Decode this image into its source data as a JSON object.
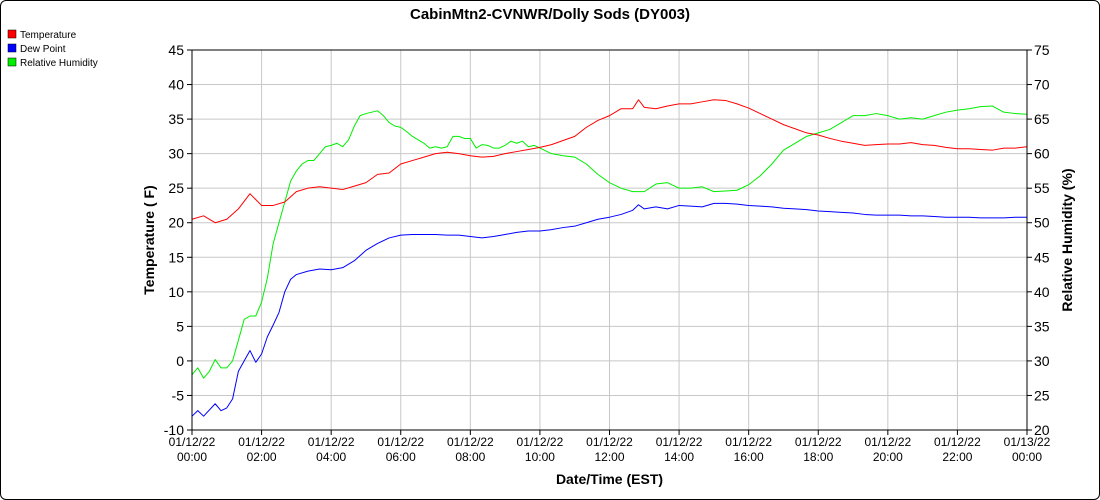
{
  "chart_data": {
    "type": "line",
    "title": "CabinMtn2-CVNWR/Dolly Sods (DY003)",
    "xlabel": "Date/Time (EST)",
    "ylabel_left": "Temperature ( F)",
    "ylabel_right": "Relative Humidity (%)",
    "x_range": [
      "01/12/22 00:00",
      "01/13/22 00:00"
    ],
    "x_ticks": [
      {
        "date": "01/12/22",
        "time": "00:00"
      },
      {
        "date": "01/12/22",
        "time": "02:00"
      },
      {
        "date": "01/12/22",
        "time": "04:00"
      },
      {
        "date": "01/12/22",
        "time": "06:00"
      },
      {
        "date": "01/12/22",
        "time": "08:00"
      },
      {
        "date": "01/12/22",
        "time": "10:00"
      },
      {
        "date": "01/12/22",
        "time": "12:00"
      },
      {
        "date": "01/12/22",
        "time": "14:00"
      },
      {
        "date": "01/12/22",
        "time": "16:00"
      },
      {
        "date": "01/12/22",
        "time": "18:00"
      },
      {
        "date": "01/12/22",
        "time": "20:00"
      },
      {
        "date": "01/12/22",
        "time": "22:00"
      },
      {
        "date": "01/13/22",
        "time": "00:00"
      }
    ],
    "ylim_left": [
      -10,
      45
    ],
    "yticks_left": [
      -10,
      -5,
      0,
      5,
      10,
      15,
      20,
      25,
      30,
      35,
      40,
      45
    ],
    "ylim_right": [
      20,
      75
    ],
    "yticks_right": [
      20,
      25,
      30,
      35,
      40,
      45,
      50,
      55,
      60,
      65,
      70,
      75
    ],
    "grid": true,
    "legend_position": "top-left",
    "series": [
      {
        "name": "Temperature",
        "color": "#ff0000",
        "axis": "left",
        "x": [
          "01/12/22 00:00",
          "01/12/22 00:20",
          "01/12/22 00:40",
          "01/12/22 01:00",
          "01/12/22 01:20",
          "01/12/22 01:40",
          "01/12/22 02:00",
          "01/12/22 02:20",
          "01/12/22 02:40",
          "01/12/22 03:00",
          "01/12/22 03:20",
          "01/12/22 03:40",
          "01/12/22 04:00",
          "01/12/22 04:20",
          "01/12/22 04:40",
          "01/12/22 05:00",
          "01/12/22 05:20",
          "01/12/22 05:40",
          "01/12/22 06:00",
          "01/12/22 06:20",
          "01/12/22 06:40",
          "01/12/22 07:00",
          "01/12/22 07:20",
          "01/12/22 07:40",
          "01/12/22 08:00",
          "01/12/22 08:20",
          "01/12/22 08:40",
          "01/12/22 09:00",
          "01/12/22 09:20",
          "01/12/22 09:40",
          "01/12/22 10:00",
          "01/12/22 10:20",
          "01/12/22 10:40",
          "01/12/22 11:00",
          "01/12/22 11:20",
          "01/12/22 11:40",
          "01/12/22 12:00",
          "01/12/22 12:20",
          "01/12/22 12:40",
          "01/12/22 12:50",
          "01/12/22 13:00",
          "01/12/22 13:20",
          "01/12/22 13:40",
          "01/12/22 14:00",
          "01/12/22 14:20",
          "01/12/22 14:40",
          "01/12/22 15:00",
          "01/12/22 15:20",
          "01/12/22 15:40",
          "01/12/22 16:00",
          "01/12/22 16:20",
          "01/12/22 16:40",
          "01/12/22 17:00",
          "01/12/22 17:20",
          "01/12/22 17:40",
          "01/12/22 18:00",
          "01/12/22 18:20",
          "01/12/22 18:40",
          "01/12/22 19:00",
          "01/12/22 19:20",
          "01/12/22 19:40",
          "01/12/22 20:00",
          "01/12/22 20:20",
          "01/12/22 20:40",
          "01/12/22 21:00",
          "01/12/22 21:20",
          "01/12/22 21:40",
          "01/12/22 22:00",
          "01/12/22 22:20",
          "01/12/22 22:40",
          "01/12/22 23:00",
          "01/12/22 23:20",
          "01/12/22 23:40",
          "01/13/22 00:00"
        ],
        "y": [
          20.5,
          21.0,
          20.0,
          20.5,
          22.0,
          24.2,
          22.5,
          22.5,
          23.0,
          24.5,
          25.0,
          25.2,
          25.0,
          24.8,
          25.3,
          25.8,
          27.0,
          27.2,
          28.5,
          29.0,
          29.5,
          30.0,
          30.2,
          30.0,
          29.7,
          29.5,
          29.6,
          30.0,
          30.3,
          30.6,
          30.9,
          31.3,
          31.9,
          32.5,
          33.8,
          34.8,
          35.5,
          36.5,
          36.5,
          37.8,
          36.7,
          36.5,
          36.9,
          37.2,
          37.2,
          37.5,
          37.8,
          37.7,
          37.2,
          36.6,
          35.8,
          35.0,
          34.2,
          33.6,
          33.0,
          32.7,
          32.2,
          31.8,
          31.5,
          31.2,
          31.3,
          31.4,
          31.4,
          31.6,
          31.3,
          31.2,
          30.9,
          30.7,
          30.7,
          30.6,
          30.5,
          30.8,
          30.8,
          31.0
        ]
      },
      {
        "name": "Dew Point",
        "color": "#0000ff",
        "axis": "left",
        "x": [
          "01/12/22 00:00",
          "01/12/22 00:10",
          "01/12/22 00:20",
          "01/12/22 00:40",
          "01/12/22 00:50",
          "01/12/22 01:00",
          "01/12/22 01:10",
          "01/12/22 01:20",
          "01/12/22 01:40",
          "01/12/22 01:50",
          "01/12/22 02:00",
          "01/12/22 02:10",
          "01/12/22 02:20",
          "01/12/22 02:30",
          "01/12/22 02:40",
          "01/12/22 02:50",
          "01/12/22 03:00",
          "01/12/22 03:20",
          "01/12/22 03:40",
          "01/12/22 04:00",
          "01/12/22 04:20",
          "01/12/22 04:40",
          "01/12/22 05:00",
          "01/12/22 05:20",
          "01/12/22 05:40",
          "01/12/22 06:00",
          "01/12/22 06:20",
          "01/12/22 06:40",
          "01/12/22 07:00",
          "01/12/22 07:20",
          "01/12/22 07:40",
          "01/12/22 08:00",
          "01/12/22 08:20",
          "01/12/22 08:40",
          "01/12/22 09:00",
          "01/12/22 09:20",
          "01/12/22 09:40",
          "01/12/22 10:00",
          "01/12/22 10:20",
          "01/12/22 10:40",
          "01/12/22 11:00",
          "01/12/22 11:20",
          "01/12/22 11:40",
          "01/12/22 12:00",
          "01/12/22 12:20",
          "01/12/22 12:40",
          "01/12/22 12:50",
          "01/12/22 13:00",
          "01/12/22 13:20",
          "01/12/22 13:40",
          "01/12/22 14:00",
          "01/12/22 14:20",
          "01/12/22 14:40",
          "01/12/22 15:00",
          "01/12/22 15:20",
          "01/12/22 15:40",
          "01/12/22 16:00",
          "01/12/22 16:20",
          "01/12/22 16:40",
          "01/12/22 17:00",
          "01/12/22 17:20",
          "01/12/22 17:40",
          "01/12/22 18:00",
          "01/12/22 18:20",
          "01/12/22 18:40",
          "01/12/22 19:00",
          "01/12/22 19:20",
          "01/12/22 19:40",
          "01/12/22 20:00",
          "01/12/22 20:20",
          "01/12/22 20:40",
          "01/12/22 21:00",
          "01/12/22 21:20",
          "01/12/22 21:40",
          "01/12/22 22:00",
          "01/12/22 22:20",
          "01/12/22 22:40",
          "01/12/22 23:00",
          "01/12/22 23:20",
          "01/12/22 23:40",
          "01/13/22 00:00"
        ],
        "y": [
          -8.0,
          -7.2,
          -8.0,
          -6.2,
          -7.2,
          -6.8,
          -5.5,
          -1.5,
          1.5,
          -0.2,
          1.0,
          3.5,
          5.2,
          7.0,
          10.0,
          11.8,
          12.5,
          13.0,
          13.3,
          13.2,
          13.5,
          14.5,
          16.0,
          17.0,
          17.8,
          18.2,
          18.3,
          18.3,
          18.3,
          18.2,
          18.2,
          18.0,
          17.8,
          18.0,
          18.3,
          18.6,
          18.8,
          18.8,
          19.0,
          19.3,
          19.5,
          20.0,
          20.5,
          20.8,
          21.2,
          21.8,
          22.6,
          22.0,
          22.3,
          22.0,
          22.5,
          22.4,
          22.3,
          22.8,
          22.8,
          22.7,
          22.5,
          22.4,
          22.3,
          22.1,
          22.0,
          21.9,
          21.7,
          21.6,
          21.5,
          21.4,
          21.2,
          21.1,
          21.1,
          21.1,
          21.0,
          21.0,
          20.9,
          20.8,
          20.8,
          20.8,
          20.7,
          20.7,
          20.7,
          20.8,
          20.8
        ]
      },
      {
        "name": "Relative Humidity",
        "color": "#00ee00",
        "axis": "right",
        "x": [
          "01/12/22 00:00",
          "01/12/22 00:10",
          "01/12/22 00:20",
          "01/12/22 00:30",
          "01/12/22 00:40",
          "01/12/22 00:50",
          "01/12/22 01:00",
          "01/12/22 01:10",
          "01/12/22 01:20",
          "01/12/22 01:30",
          "01/12/22 01:40",
          "01/12/22 01:50",
          "01/12/22 02:00",
          "01/12/22 02:10",
          "01/12/22 02:20",
          "01/12/22 02:30",
          "01/12/22 02:40",
          "01/12/22 02:50",
          "01/12/22 03:00",
          "01/12/22 03:10",
          "01/12/22 03:20",
          "01/12/22 03:30",
          "01/12/22 03:40",
          "01/12/22 03:50",
          "01/12/22 04:00",
          "01/12/22 04:10",
          "01/12/22 04:20",
          "01/12/22 04:30",
          "01/12/22 04:40",
          "01/12/22 04:50",
          "01/12/22 05:00",
          "01/12/22 05:10",
          "01/12/22 05:20",
          "01/12/22 05:30",
          "01/12/22 05:40",
          "01/12/22 05:50",
          "01/12/22 06:00",
          "01/12/22 06:10",
          "01/12/22 06:20",
          "01/12/22 06:30",
          "01/12/22 06:40",
          "01/12/22 06:50",
          "01/12/22 07:00",
          "01/12/22 07:10",
          "01/12/22 07:20",
          "01/12/22 07:30",
          "01/12/22 07:40",
          "01/12/22 07:50",
          "01/12/22 08:00",
          "01/12/22 08:10",
          "01/12/22 08:20",
          "01/12/22 08:30",
          "01/12/22 08:40",
          "01/12/22 08:50",
          "01/12/22 09:00",
          "01/12/22 09:10",
          "01/12/22 09:20",
          "01/12/22 09:30",
          "01/12/22 09:40",
          "01/12/22 09:50",
          "01/12/22 10:00",
          "01/12/22 10:20",
          "01/12/22 10:40",
          "01/12/22 11:00",
          "01/12/22 11:20",
          "01/12/22 11:40",
          "01/12/22 12:00",
          "01/12/22 12:20",
          "01/12/22 12:40",
          "01/12/22 13:00",
          "01/12/22 13:20",
          "01/12/22 13:40",
          "01/12/22 14:00",
          "01/12/22 14:20",
          "01/12/22 14:40",
          "01/12/22 15:00",
          "01/12/22 15:20",
          "01/12/22 15:40",
          "01/12/22 16:00",
          "01/12/22 16:20",
          "01/12/22 16:40",
          "01/12/22 17:00",
          "01/12/22 17:20",
          "01/12/22 17:40",
          "01/12/22 18:00",
          "01/12/22 18:20",
          "01/12/22 18:40",
          "01/12/22 19:00",
          "01/12/22 19:20",
          "01/12/22 19:40",
          "01/12/22 20:00",
          "01/12/22 20:20",
          "01/12/22 20:40",
          "01/12/22 21:00",
          "01/12/22 21:20",
          "01/12/22 21:40",
          "01/12/22 22:00",
          "01/12/22 22:20",
          "01/12/22 22:40",
          "01/12/22 23:00",
          "01/12/22 23:20",
          "01/12/22 23:40",
          "01/13/22 00:00"
        ],
        "y": [
          28.0,
          29.0,
          27.5,
          28.5,
          30.2,
          29.0,
          29.0,
          30.0,
          33.0,
          36.0,
          36.5,
          36.5,
          38.5,
          42.0,
          47.0,
          50.0,
          53.0,
          56.0,
          57.5,
          58.5,
          59.0,
          59.0,
          60.0,
          61.0,
          61.2,
          61.5,
          61.0,
          62.0,
          64.0,
          65.5,
          65.8,
          66.0,
          66.2,
          65.5,
          64.5,
          64.0,
          63.8,
          63.2,
          62.5,
          62.0,
          61.5,
          60.8,
          61.0,
          60.8,
          61.0,
          62.5,
          62.5,
          62.2,
          62.2,
          60.8,
          61.3,
          61.2,
          60.8,
          60.8,
          61.2,
          61.8,
          61.5,
          61.8,
          61.0,
          61.2,
          60.8,
          60.0,
          59.7,
          59.5,
          58.5,
          57.0,
          55.8,
          55.0,
          54.5,
          54.5,
          55.6,
          55.8,
          55.0,
          55.0,
          55.2,
          54.5,
          54.6,
          54.7,
          55.5,
          56.8,
          58.5,
          60.5,
          61.5,
          62.5,
          63.0,
          63.5,
          64.5,
          65.5,
          65.5,
          65.8,
          65.5,
          65.0,
          65.2,
          65.0,
          65.5,
          66.0,
          66.3,
          66.5,
          66.8,
          66.9,
          66.0,
          65.8,
          65.7
        ]
      }
    ]
  }
}
